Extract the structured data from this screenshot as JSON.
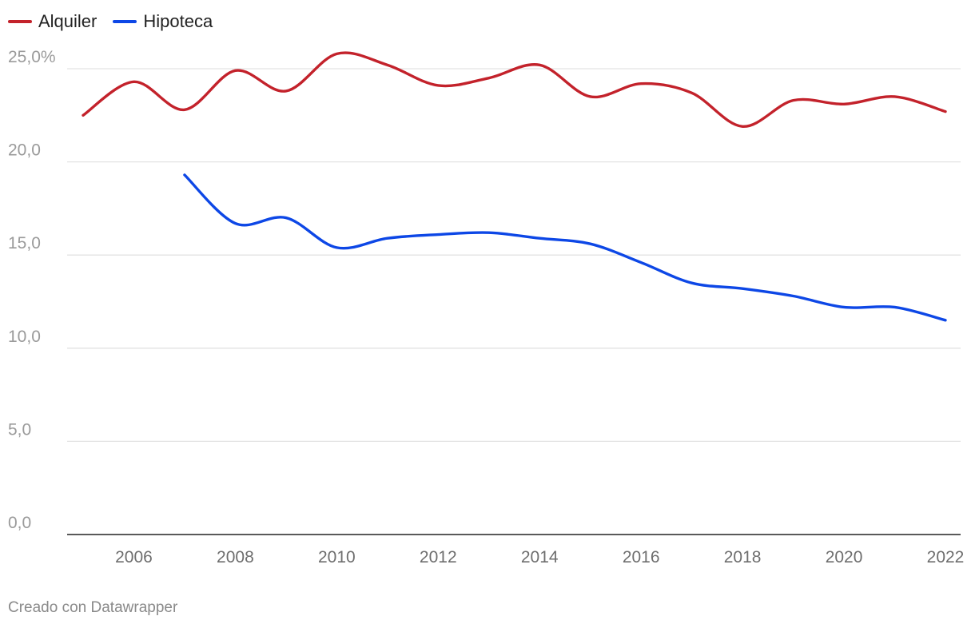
{
  "legend": {
    "items": [
      {
        "label": "Alquiler",
        "color": "#c3222b"
      },
      {
        "label": "Hipoteca",
        "color": "#0d47e6"
      }
    ]
  },
  "credit": "Creado con Datawrapper",
  "chart_data": {
    "type": "line",
    "title": "",
    "xlabel": "",
    "ylabel": "",
    "x": [
      2005,
      2006,
      2007,
      2008,
      2009,
      2010,
      2011,
      2012,
      2013,
      2014,
      2015,
      2016,
      2017,
      2018,
      2019,
      2020,
      2021,
      2022
    ],
    "series": [
      {
        "name": "Alquiler",
        "color": "#c3222b",
        "values": [
          22.5,
          24.3,
          22.8,
          24.9,
          23.8,
          25.8,
          25.2,
          24.1,
          24.5,
          25.2,
          23.5,
          24.2,
          23.7,
          21.9,
          23.3,
          23.1,
          23.5,
          22.7
        ]
      },
      {
        "name": "Hipoteca",
        "color": "#0d47e6",
        "values": [
          null,
          null,
          19.3,
          16.7,
          17.0,
          15.4,
          15.9,
          16.1,
          16.2,
          15.9,
          15.6,
          14.6,
          13.5,
          13.2,
          12.8,
          12.2,
          12.2,
          11.5
        ]
      }
    ],
    "ylim": [
      0,
      25
    ],
    "yticks": [
      0,
      5,
      10,
      15,
      20,
      25
    ],
    "ytick_labels": [
      "0,0",
      "5,0",
      "10,0",
      "15,0",
      "20,0",
      "25,0%"
    ],
    "xlim": [
      2005,
      2022
    ],
    "xticks": [
      2006,
      2008,
      2010,
      2012,
      2014,
      2016,
      2018,
      2020,
      2022
    ],
    "xtick_labels": [
      "2006",
      "2008",
      "2010",
      "2012",
      "2014",
      "2016",
      "2018",
      "2020",
      "2022"
    ],
    "grid": true,
    "legend_position": "top-left"
  }
}
